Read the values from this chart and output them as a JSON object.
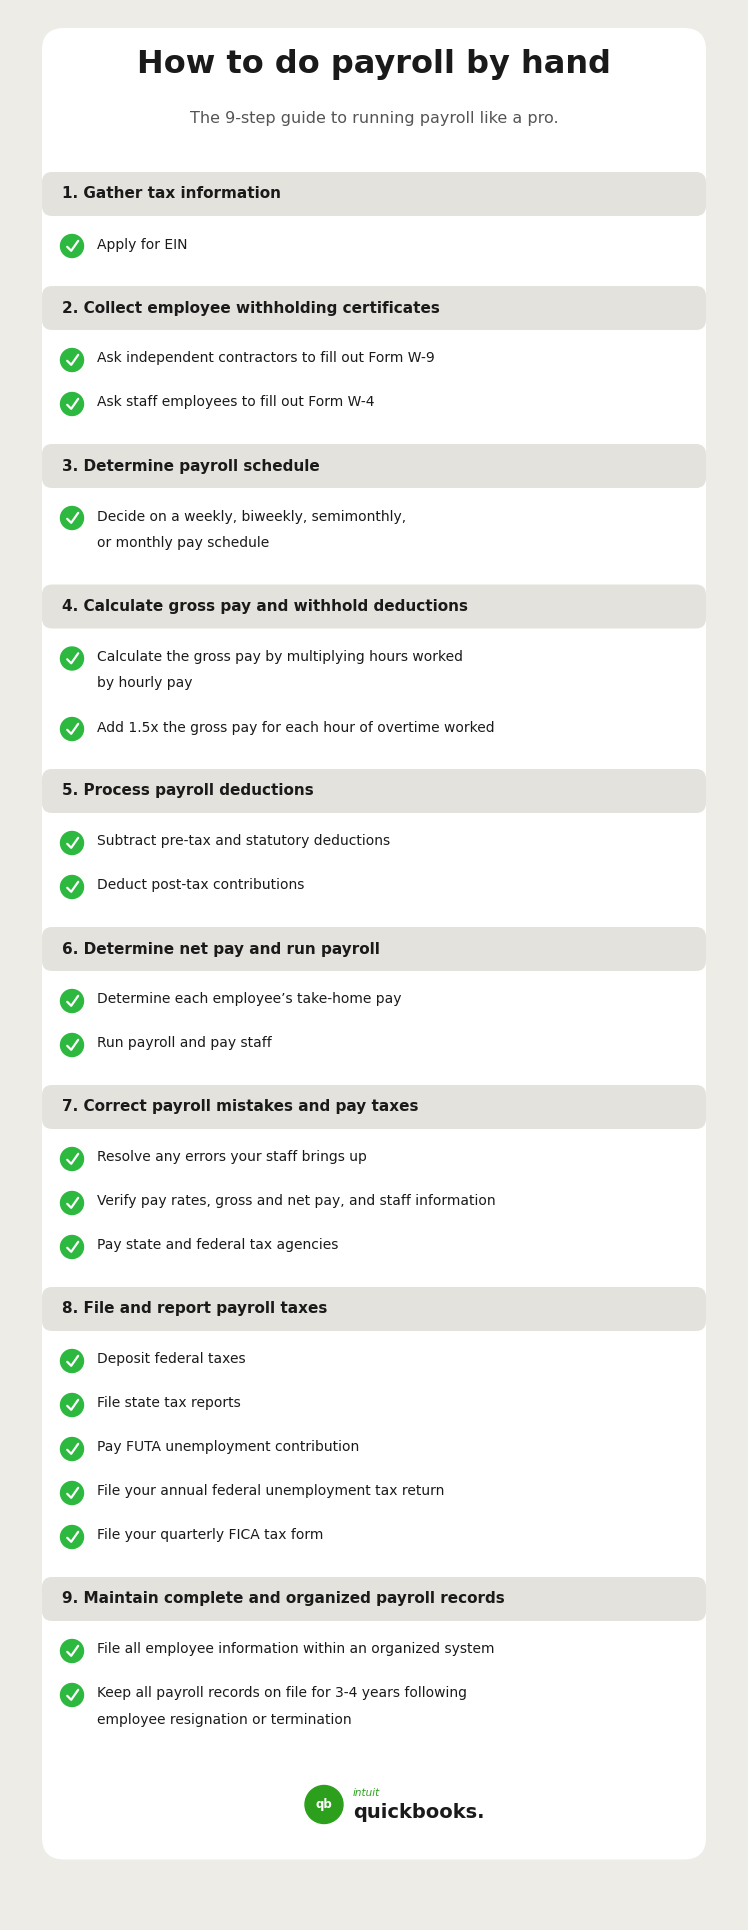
{
  "title": "How to do payroll by hand",
  "subtitle": "The 9-step guide to running payroll like a pro.",
  "bg_color": "#eeece7",
  "card_bg": "#ffffff",
  "header_bg": "#e4e2dc",
  "text_color": "#1a1a1a",
  "subtitle_color": "#555555",
  "green_color": "#2db840",
  "steps": [
    {
      "number": "1.",
      "title": "Gather tax information",
      "items": [
        "Apply for EIN"
      ]
    },
    {
      "number": "2.",
      "title": "Collect employee withholding certificates",
      "items": [
        "Ask independent contractors to fill out Form W-9",
        "Ask staff employees to fill out Form W-4"
      ]
    },
    {
      "number": "3.",
      "title": "Determine payroll schedule",
      "items": [
        "Decide on a weekly, biweekly, semimonthly,\nor monthly pay schedule"
      ]
    },
    {
      "number": "4.",
      "title": "Calculate gross pay and withhold deductions",
      "items": [
        "Calculate the gross pay by multiplying hours worked\nby hourly pay",
        "Add 1.5x the gross pay for each hour of overtime worked"
      ]
    },
    {
      "number": "5.",
      "title": "Process payroll deductions",
      "items": [
        "Subtract pre-tax and statutory deductions",
        "Deduct post-tax contributions"
      ]
    },
    {
      "number": "6.",
      "title": "Determine net pay and run payroll",
      "items": [
        "Determine each employee’s take-home pay",
        "Run payroll and pay staff"
      ]
    },
    {
      "number": "7.",
      "title": "Correct payroll mistakes and pay taxes",
      "items": [
        "Resolve any errors your staff brings up",
        "Verify pay rates, gross and net pay, and staff information",
        "Pay state and federal tax agencies"
      ]
    },
    {
      "number": "8.",
      "title": "File and report payroll taxes",
      "items": [
        "Deposit federal taxes",
        "File state tax reports",
        "Pay FUTA unemployment contribution",
        "File your annual federal unemployment tax return",
        "File your quarterly FICA tax form"
      ]
    },
    {
      "number": "9.",
      "title": "Maintain complete and organized payroll records",
      "items": [
        "File all employee information within an organized system",
        "Keep all payroll records on file for 3-4 years following\nemployee resignation or termination"
      ]
    }
  ],
  "logo_text": "quickbooks.",
  "logo_color": "#2ca01c",
  "intuit_color": "#2ca01c"
}
